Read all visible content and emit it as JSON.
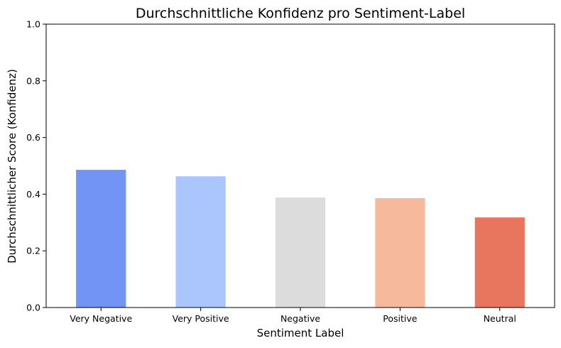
{
  "chart_data": {
    "type": "bar",
    "title": "Durchschnittliche Konfidenz pro Sentiment-Label",
    "xlabel": "Sentiment Label",
    "ylabel": "Durchschnittlicher Score (Konfidenz)",
    "categories": [
      "Very Negative",
      "Very Positive",
      "Negative",
      "Positive",
      "Neutral"
    ],
    "values": [
      0.486,
      0.463,
      0.388,
      0.386,
      0.318
    ],
    "colors": [
      "#7294f4",
      "#aac6fd",
      "#dcdcdc",
      "#f6b99c",
      "#e8765f"
    ],
    "ylim": [
      0,
      1.0
    ],
    "yticks": [
      "0.0",
      "0.2",
      "0.4",
      "0.6",
      "0.8",
      "1.0"
    ],
    "grid": false,
    "legend": "none"
  }
}
